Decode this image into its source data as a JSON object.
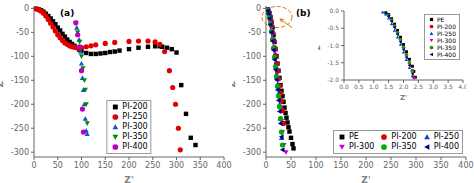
{
  "chart_data": [
    {
      "type": "scatter",
      "title": "(a)",
      "x_label": "Z'",
      "y_label": "Z''",
      "xlim": [
        0,
        400
      ],
      "ylim": [
        -310,
        5
      ],
      "xticks": [
        0,
        50,
        100,
        150,
        200,
        250,
        300,
        350,
        400
      ],
      "yticks": [
        0,
        -50,
        -100,
        -150,
        -200,
        -250,
        -300
      ],
      "grid": false,
      "legend": "lower center",
      "series": [
        {
          "name": "PI-200",
          "color": "black",
          "marker": "square",
          "x": [
            5,
            10,
            15,
            20,
            25,
            30,
            35,
            40,
            45,
            50,
            55,
            60,
            65,
            70,
            75,
            80,
            85,
            90,
            95,
            100,
            110,
            120,
            130,
            140,
            150,
            160,
            170,
            180,
            200,
            220,
            240,
            255,
            265,
            270,
            280,
            290,
            300,
            310,
            320,
            330,
            340
          ],
          "y": [
            -1,
            -2,
            -4,
            -7,
            -11,
            -16,
            -21,
            -27,
            -33,
            -40,
            -46,
            -53,
            -59,
            -65,
            -70,
            -74,
            -78,
            -82,
            -86,
            -89,
            -93,
            -95,
            -95,
            -94,
            -93,
            -91,
            -90,
            -88,
            -85,
            -82,
            -80,
            -79,
            -79,
            -80,
            -82,
            -85,
            -92,
            -160,
            -220,
            -270,
            -285
          ]
        },
        {
          "name": "PI-250",
          "color": "#e00000",
          "marker": "circle",
          "x": [
            5,
            10,
            15,
            20,
            25,
            30,
            35,
            40,
            45,
            50,
            55,
            60,
            65,
            70,
            75,
            80,
            85,
            90,
            95,
            100,
            110,
            120,
            130,
            150,
            170,
            200,
            220,
            240,
            255,
            265,
            275,
            285,
            292,
            298,
            304,
            308
          ],
          "y": [
            -1,
            -3,
            -6,
            -10,
            -16,
            -23,
            -31,
            -39,
            -47,
            -55,
            -61,
            -67,
            -72,
            -75,
            -78,
            -80,
            -81,
            -82,
            -83,
            -82,
            -80,
            -78,
            -76,
            -73,
            -71,
            -69,
            -68,
            -68,
            -70,
            -75,
            -90,
            -130,
            -165,
            -200,
            -250,
            -295
          ]
        },
        {
          "name": "PI-300",
          "color": "#1155cc",
          "marker": "triangle-up",
          "x": [
            90,
            95,
            98,
            100,
            102,
            104,
            106,
            108,
            110,
            112
          ],
          "y": [
            -40,
            -65,
            -90,
            -115,
            -145,
            -170,
            -200,
            -230,
            -255,
            -262
          ]
        },
        {
          "name": "PI-350",
          "color": "#008800",
          "marker": "triangle-down",
          "x": [
            88,
            92,
            96,
            100,
            103,
            106,
            108,
            110,
            112
          ],
          "y": [
            -30,
            -50,
            -70,
            -100,
            -125,
            -150,
            -170,
            -200,
            -240
          ]
        },
        {
          "name": "PI-400",
          "color": "#bb00bb",
          "marker": "circle",
          "x": [
            88,
            92,
            96,
            100,
            102,
            104
          ],
          "y": [
            -30,
            -55,
            -80,
            -130,
            -210,
            -258
          ]
        }
      ]
    },
    {
      "type": "scatter",
      "title": "(b)",
      "x_label": "Z'",
      "y_label": "Z''",
      "xlim": [
        0,
        400
      ],
      "ylim": [
        -310,
        5
      ],
      "xticks": [
        0,
        50,
        100,
        150,
        200,
        250,
        300,
        350,
        400
      ],
      "yticks": [
        0,
        -50,
        -100,
        -150,
        -200,
        -250,
        -300
      ],
      "grid": false,
      "legend": "lower right",
      "series": [
        {
          "name": "PE",
          "color": "black",
          "marker": "square",
          "x": [
            3,
            5,
            7,
            9,
            11,
            13,
            15,
            17,
            19,
            21,
            23,
            25,
            27,
            29,
            31,
            33,
            35,
            37,
            39,
            41,
            43,
            45,
            47,
            50,
            53,
            55
          ],
          "y": [
            -2,
            -5,
            -10,
            -18,
            -28,
            -40,
            -55,
            -70,
            -85,
            -100,
            -115,
            -130,
            -145,
            -160,
            -172,
            -183,
            -195,
            -207,
            -218,
            -228,
            -238,
            -248,
            -257,
            -270,
            -283,
            -292
          ]
        },
        {
          "name": "PI-200",
          "color": "#e00000",
          "marker": "circle",
          "x": [
            3,
            5,
            7,
            9,
            11,
            13,
            15,
            17,
            19,
            21,
            23,
            25,
            27,
            29,
            31,
            33,
            35
          ],
          "y": [
            -3,
            -7,
            -14,
            -24,
            -36,
            -50,
            -65,
            -82,
            -98,
            -115,
            -131,
            -147,
            -162,
            -177,
            -193,
            -213,
            -240
          ]
        },
        {
          "name": "PI-250",
          "color": "#0044cc",
          "marker": "triangle-up",
          "x": [
            3,
            5,
            7,
            9,
            11,
            13,
            15,
            17,
            19,
            21,
            23,
            25,
            27,
            29,
            31
          ],
          "y": [
            -4,
            -9,
            -18,
            -30,
            -45,
            -62,
            -80,
            -98,
            -117,
            -137,
            -158,
            -178,
            -200,
            -230,
            -270
          ]
        },
        {
          "name": "PI-300",
          "color": "#cc00cc",
          "marker": "triangle-down",
          "x": [
            3,
            5,
            7,
            9,
            11,
            13,
            15,
            17,
            19,
            21,
            23,
            25,
            27,
            29,
            31,
            33,
            36,
            40
          ],
          "y": [
            -3,
            -8,
            -15,
            -26,
            -40,
            -56,
            -72,
            -90,
            -108,
            -128,
            -148,
            -168,
            -188,
            -210,
            -235,
            -258,
            -285,
            -300
          ]
        },
        {
          "name": "PI-350",
          "color": "#00aa00",
          "marker": "circle",
          "x": [
            3,
            5,
            7,
            9,
            11,
            13,
            15,
            17,
            19,
            21,
            23,
            25,
            27,
            29,
            31,
            33
          ],
          "y": [
            -4,
            -10,
            -19,
            -32,
            -48,
            -65,
            -83,
            -102,
            -122,
            -143,
            -163,
            -183,
            -205,
            -230,
            -258,
            -285
          ]
        },
        {
          "name": "PI-400",
          "color": "#000088",
          "marker": "triangle-left",
          "x": [
            3,
            5,
            7,
            9,
            11,
            13,
            15,
            17,
            19,
            21,
            23,
            25,
            27,
            29,
            31,
            33
          ],
          "y": [
            -5,
            -11,
            -21,
            -34,
            -50,
            -68,
            -87,
            -107,
            -128,
            -149,
            -170,
            -192,
            -215,
            -240,
            -268,
            -295
          ]
        }
      ],
      "annotations": [
        {
          "type": "ellipse",
          "cx": 22,
          "cy": -18,
          "rx": 30,
          "ry": 22,
          "color": "#e07800",
          "line_style": "dashed"
        },
        {
          "type": "arrow",
          "x_start": 52,
          "y_start": -40,
          "x_end": 28,
          "y_end": -22,
          "color": "#e07800"
        }
      ]
    },
    {
      "type": "scatter",
      "x_label": "Z'",
      "y_label": "Z''",
      "xlim": [
        0.0,
        4.0
      ],
      "ylim": [
        -2.0,
        0.0
      ],
      "xticks": [
        {
          "value": 0.0,
          "label": "0.0"
        },
        {
          "value": 0.5,
          "label": "0.5"
        },
        {
          "value": 1.0,
          "label": "1.0"
        },
        {
          "value": 1.5,
          "label": "1.5"
        },
        {
          "value": 2.0,
          "label": "2.0"
        },
        {
          "value": 2.5,
          "label": "2.5"
        },
        {
          "value": 3.0,
          "label": "3.0"
        },
        {
          "value": 3.5,
          "label": "3.5"
        },
        {
          "value": 4.0,
          "label": "4.0"
        }
      ],
      "yticks": [
        {
          "value": -2.0,
          "label": "-2.0"
        },
        {
          "value": -1.5,
          "label": "-1.5"
        },
        {
          "value": -1.0,
          "label": "-1.0"
        },
        {
          "value": -0.5,
          "label": "-0.5"
        },
        {
          "value": 0.0,
          "label": "0.0"
        }
      ],
      "grid": false,
      "legend": "upper right",
      "series": [
        {
          "name": "PE",
          "color": "black",
          "marker": "square",
          "x": [
            1.4,
            1.5,
            1.6,
            1.7,
            1.8,
            1.9,
            2.0,
            2.1,
            2.2,
            2.3,
            2.35,
            2.4
          ],
          "y": [
            -0.03,
            -0.1,
            -0.22,
            -0.38,
            -0.56,
            -0.76,
            -0.97,
            -1.18,
            -1.4,
            -1.6,
            -1.75,
            -1.92
          ]
        },
        {
          "name": "PI-200",
          "color": "#e00000",
          "marker": "circle",
          "x": [
            1.4,
            1.5,
            1.6,
            1.7,
            1.8,
            1.9,
            2.0,
            2.1,
            2.2,
            2.3,
            2.35
          ],
          "y": [
            -0.04,
            -0.12,
            -0.26,
            -0.43,
            -0.62,
            -0.83,
            -1.05,
            -1.27,
            -1.5,
            -1.72,
            -1.92
          ]
        },
        {
          "name": "PI-250",
          "color": "#0044cc",
          "marker": "triangle-up",
          "x": [
            1.3,
            1.4,
            1.5,
            1.6,
            1.7,
            1.8,
            1.9,
            2.0,
            2.1,
            2.2,
            2.3
          ],
          "y": [
            -0.03,
            -0.09,
            -0.21,
            -0.37,
            -0.56,
            -0.76,
            -0.97,
            -1.19,
            -1.41,
            -1.64,
            -1.88
          ]
        },
        {
          "name": "PI-300",
          "color": "#cc00cc",
          "marker": "triangle-down",
          "x": [
            1.4,
            1.5,
            1.6,
            1.7,
            1.8,
            1.9,
            2.0,
            2.1,
            2.2,
            2.3,
            2.35
          ],
          "y": [
            -0.05,
            -0.14,
            -0.28,
            -0.46,
            -0.66,
            -0.87,
            -1.09,
            -1.32,
            -1.55,
            -1.77,
            -1.95
          ]
        },
        {
          "name": "PI-350",
          "color": "#00aa00",
          "marker": "circle",
          "x": [
            1.4,
            1.5,
            1.6,
            1.7,
            1.8,
            1.9,
            2.0,
            2.1,
            2.2,
            2.3
          ],
          "y": [
            -0.04,
            -0.13,
            -0.27,
            -0.44,
            -0.63,
            -0.84,
            -1.06,
            -1.28,
            -1.51,
            -1.75
          ]
        },
        {
          "name": "PI-400",
          "color": "#000088",
          "marker": "triangle-left",
          "x": [
            1.4,
            1.5,
            1.6,
            1.7,
            1.8,
            1.9,
            2.0,
            2.1,
            2.2,
            2.3
          ],
          "y": [
            -0.06,
            -0.15,
            -0.3,
            -0.48,
            -0.68,
            -0.9,
            -1.12,
            -1.35,
            -1.58,
            -1.82
          ]
        }
      ]
    }
  ]
}
